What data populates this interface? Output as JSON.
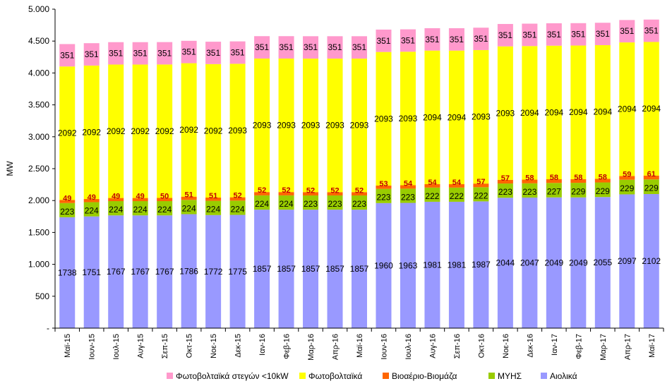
{
  "chart_data": {
    "type": "bar",
    "stacked": true,
    "title": "",
    "xlabel": "",
    "ylabel": "MW",
    "ylim": [
      0,
      5000
    ],
    "yticks": [
      0,
      500,
      1000,
      1500,
      2000,
      2500,
      3000,
      3500,
      4000,
      4500,
      5000
    ],
    "ytick_labels": [
      "-",
      "500",
      "1.000",
      "1.500",
      "2.000",
      "2.500",
      "3.000",
      "3.500",
      "4.000",
      "4.500",
      "5.000"
    ],
    "grid": false,
    "legend_position": "bottom",
    "categories": [
      "Μαϊ-15",
      "Ιουν-15",
      "Ιουλ-15",
      "Αυγ-15",
      "Σεπ-15",
      "Οκτ-15",
      "Νοε-15",
      "Δεκ-15",
      "Ιαν-16",
      "Φεβ-16",
      "Μαρ-16",
      "Απρ-16",
      "Μαϊ-16",
      "Ιουν-16",
      "Ιουλ-16",
      "Αυγ-16",
      "Σεπ-16",
      "Οκτ-16",
      "Νοε-16",
      "Δεκ-16",
      "Ιαν-17",
      "Φεβ-17",
      "Μαρ-17",
      "Απρ-17",
      "Μαϊ-17"
    ],
    "series": [
      {
        "name": "Αιολικά",
        "color": "#9999ff",
        "values": [
          1738,
          1751,
          1767,
          1767,
          1767,
          1786,
          1772,
          1775,
          1857,
          1857,
          1857,
          1857,
          1857,
          1960,
          1963,
          1981,
          1981,
          1987,
          2044,
          2047,
          2049,
          2049,
          2055,
          2097,
          2102
        ]
      },
      {
        "name": "ΜΥΗΣ",
        "color": "#99cc00",
        "values": [
          223,
          224,
          224,
          224,
          224,
          224,
          224,
          224,
          224,
          224,
          223,
          223,
          223,
          223,
          223,
          222,
          222,
          222,
          223,
          223,
          227,
          229,
          229,
          229,
          229
        ]
      },
      {
        "name": "Βιοαέριο-Βιομάζα",
        "color": "#ff6600",
        "values": [
          49,
          49,
          49,
          49,
          50,
          51,
          51,
          52,
          52,
          52,
          52,
          52,
          52,
          53,
          54,
          54,
          54,
          57,
          57,
          58,
          58,
          58,
          58,
          59,
          61
        ]
      },
      {
        "name": "Φωτοβολταϊκά",
        "color": "#ffff00",
        "values": [
          2092,
          2092,
          2092,
          2092,
          2092,
          2092,
          2092,
          2093,
          2093,
          2093,
          2093,
          2093,
          2093,
          2093,
          2093,
          2094,
          2094,
          2093,
          2093,
          2094,
          2094,
          2094,
          2094,
          2094,
          2094
        ]
      },
      {
        "name": "Φωτοβολταϊκά στεγών <10kW",
        "color": "#ff99cc",
        "values": [
          351,
          351,
          351,
          351,
          351,
          351,
          351,
          351,
          351,
          351,
          351,
          351,
          351,
          351,
          351,
          351,
          351,
          351,
          351,
          351,
          351,
          351,
          351,
          351,
          351
        ]
      }
    ],
    "legend_order": [
      "Φωτοβολταϊκά στεγών <10kW",
      "Φωτοβολταϊκά",
      "Βιοαέριο-Βιομάζα",
      "ΜΥΗΣ",
      "Αιολικά"
    ]
  }
}
